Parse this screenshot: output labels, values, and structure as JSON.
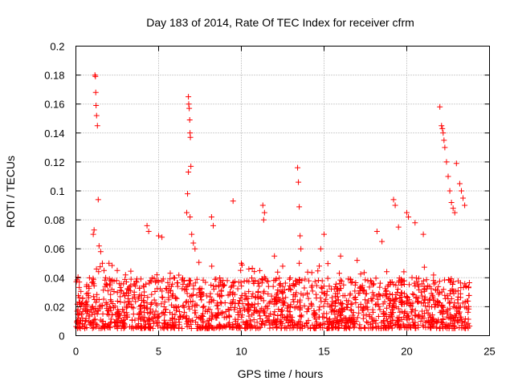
{
  "chart_data": {
    "type": "scatter",
    "title": "Day 183 of 2014, Rate Of TEC Index for receiver cfrm",
    "xlabel": "GPS time / hours",
    "ylabel": "ROTI / TECUs",
    "xlim": [
      0,
      25
    ],
    "ylim": [
      0,
      0.2
    ],
    "x_ticks": [
      "0",
      "5",
      "10",
      "15",
      "20",
      "25"
    ],
    "y_ticks": [
      "0",
      "0.02",
      "0.04",
      "0.06",
      "0.08",
      "0.1",
      "0.12",
      "0.14",
      "0.16",
      "0.18",
      "0.2"
    ],
    "x_tick_values": [
      0,
      5,
      10,
      15,
      20,
      25
    ],
    "y_tick_values": [
      0,
      0.02,
      0.04,
      0.06,
      0.08,
      0.1,
      0.12,
      0.14,
      0.16,
      0.18,
      0.2
    ],
    "grid": true,
    "marker": "+",
    "series_color": "#ff0000",
    "series": [
      {
        "name": "ROTI",
        "x": [
          1.15,
          1.18,
          1.2,
          1.22,
          1.25,
          1.3,
          1.35,
          1.1,
          1.05,
          1.4,
          1.5,
          1.6,
          1.7,
          1.8,
          6.8,
          6.82,
          6.85,
          6.88,
          6.9,
          6.92,
          6.95,
          6.8,
          6.75,
          6.7,
          6.9,
          7.0,
          7.1,
          7.2,
          13.4,
          13.45,
          13.5,
          13.55,
          13.6,
          13.5,
          22.0,
          22.1,
          22.15,
          22.2,
          22.25,
          22.3,
          22.4,
          22.5,
          22.6,
          22.7,
          22.8,
          22.9,
          23.0,
          23.2,
          23.3,
          23.4,
          23.5,
          9.5,
          11.3,
          11.4,
          11.35,
          8.2,
          8.3,
          4.3,
          4.4,
          5.0,
          5.2,
          20.0,
          20.1,
          19.2,
          19.3,
          19.5,
          20.5,
          21.0,
          18.2,
          18.5,
          15.0,
          14.8,
          16.0,
          17.0,
          2.0,
          2.5,
          3.0,
          10.0,
          12.0,
          12.5
        ],
        "y": [
          0.18,
          0.179,
          0.168,
          0.159,
          0.152,
          0.145,
          0.094,
          0.073,
          0.07,
          0.062,
          0.058,
          0.05,
          0.045,
          0.04,
          0.165,
          0.16,
          0.157,
          0.149,
          0.14,
          0.137,
          0.117,
          0.113,
          0.098,
          0.085,
          0.082,
          0.07,
          0.064,
          0.06,
          0.116,
          0.106,
          0.089,
          0.069,
          0.06,
          0.05,
          0.158,
          0.145,
          0.143,
          0.14,
          0.135,
          0.13,
          0.12,
          0.11,
          0.1,
          0.092,
          0.088,
          0.085,
          0.119,
          0.105,
          0.1,
          0.095,
          0.09,
          0.093,
          0.09,
          0.085,
          0.08,
          0.082,
          0.076,
          0.076,
          0.072,
          0.069,
          0.068,
          0.085,
          0.082,
          0.094,
          0.09,
          0.075,
          0.078,
          0.07,
          0.072,
          0.065,
          0.07,
          0.06,
          0.055,
          0.052,
          0.05,
          0.045,
          0.042,
          0.05,
          0.055,
          0.048
        ]
      }
    ],
    "dense_band": {
      "description": "bulk of points",
      "x_range": [
        0.0,
        23.8
      ],
      "y_min": 0.005,
      "y_typical_max": 0.04,
      "count": 1800
    }
  }
}
